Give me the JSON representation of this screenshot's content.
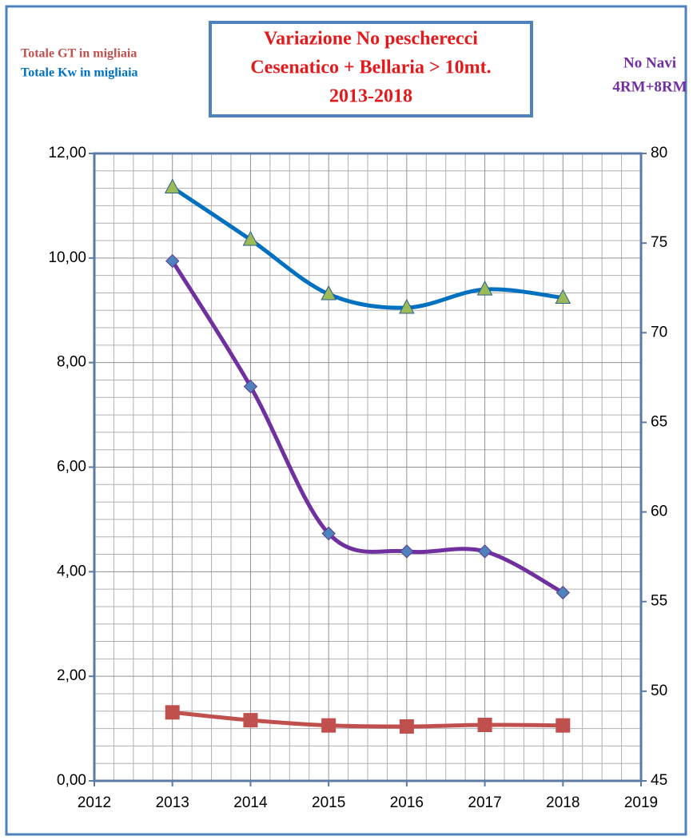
{
  "chart_data": {
    "type": "line",
    "title": [
      "Variazione No pescherecci",
      "Cesenatico + Bellaria > 10mt.",
      "2013-2018"
    ],
    "title_color": "#e31a1c",
    "x": [
      2013,
      2014,
      2015,
      2016,
      2017,
      2018
    ],
    "xlim": [
      2012,
      2019
    ],
    "xticks": [
      2012,
      2013,
      2014,
      2015,
      2016,
      2017,
      2018,
      2019
    ],
    "ylim": [
      0,
      12
    ],
    "yticks": [
      {
        "value": 0,
        "label": "0,00"
      },
      {
        "value": 2,
        "label": "2,00"
      },
      {
        "value": 4,
        "label": "4,00"
      },
      {
        "value": 6,
        "label": "6,00"
      },
      {
        "value": 8,
        "label": "8,00"
      },
      {
        "value": 10,
        "label": "10,00"
      },
      {
        "value": 12,
        "label": "12,00"
      }
    ],
    "y2lim": [
      45,
      80
    ],
    "y2ticks": [
      45,
      50,
      55,
      60,
      65,
      70,
      75,
      80
    ],
    "grid": true,
    "grid_subdivisions": {
      "x": 4,
      "y": 6
    },
    "smooth": true,
    "series": [
      {
        "name": [
          "Totale GT in migliaia"
        ],
        "color": "#c0504d",
        "marker": "square",
        "marker_color": "#c0504d",
        "values": [
          1.31,
          1.16,
          1.06,
          1.04,
          1.07,
          1.06
        ]
      },
      {
        "name": [
          "Totale Kw in migliaia"
        ],
        "color": "#0070c0",
        "marker": "triangle",
        "marker_color": "#9bbb59",
        "values": [
          11.35,
          10.35,
          9.31,
          9.05,
          9.4,
          9.24
        ]
      },
      {
        "name": [
          "No Navi",
          "4RM+8RM"
        ],
        "color": "#7030a0",
        "marker": "diamond",
        "marker_color": "#4f81bd",
        "axis": "y2",
        "values": [
          74,
          67,
          58.8,
          57.8,
          57.8,
          55.5
        ]
      }
    ]
  }
}
